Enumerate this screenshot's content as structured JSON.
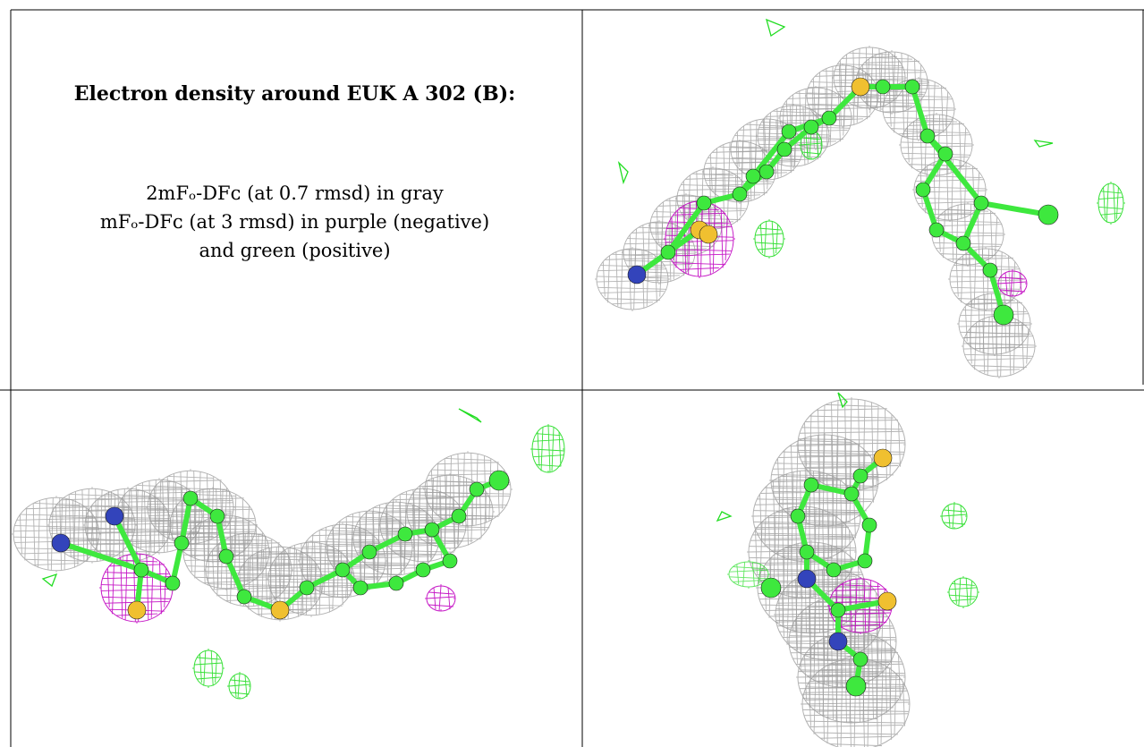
{
  "text": {
    "title": "Electron density around EUK A 302 (B):",
    "legend": [
      "2mFₒ-DFᴄ (at 0.7 rmsd) in gray",
      "mFₒ-DFᴄ (at 3 rmsd) in purple (negative)",
      "and green (positive)"
    ]
  },
  "colors": {
    "mesh_2fofc": "#9a9a9a",
    "mesh_negative": "#c000c0",
    "mesh_positive": "#22dd22",
    "carbon": "#3ee83e",
    "sulfur": "#f0c030",
    "nitrogen": "#3344bb"
  },
  "panels": [
    {
      "name": "view-top-right"
    },
    {
      "name": "view-bottom-left"
    },
    {
      "name": "view-bottom-right"
    }
  ]
}
